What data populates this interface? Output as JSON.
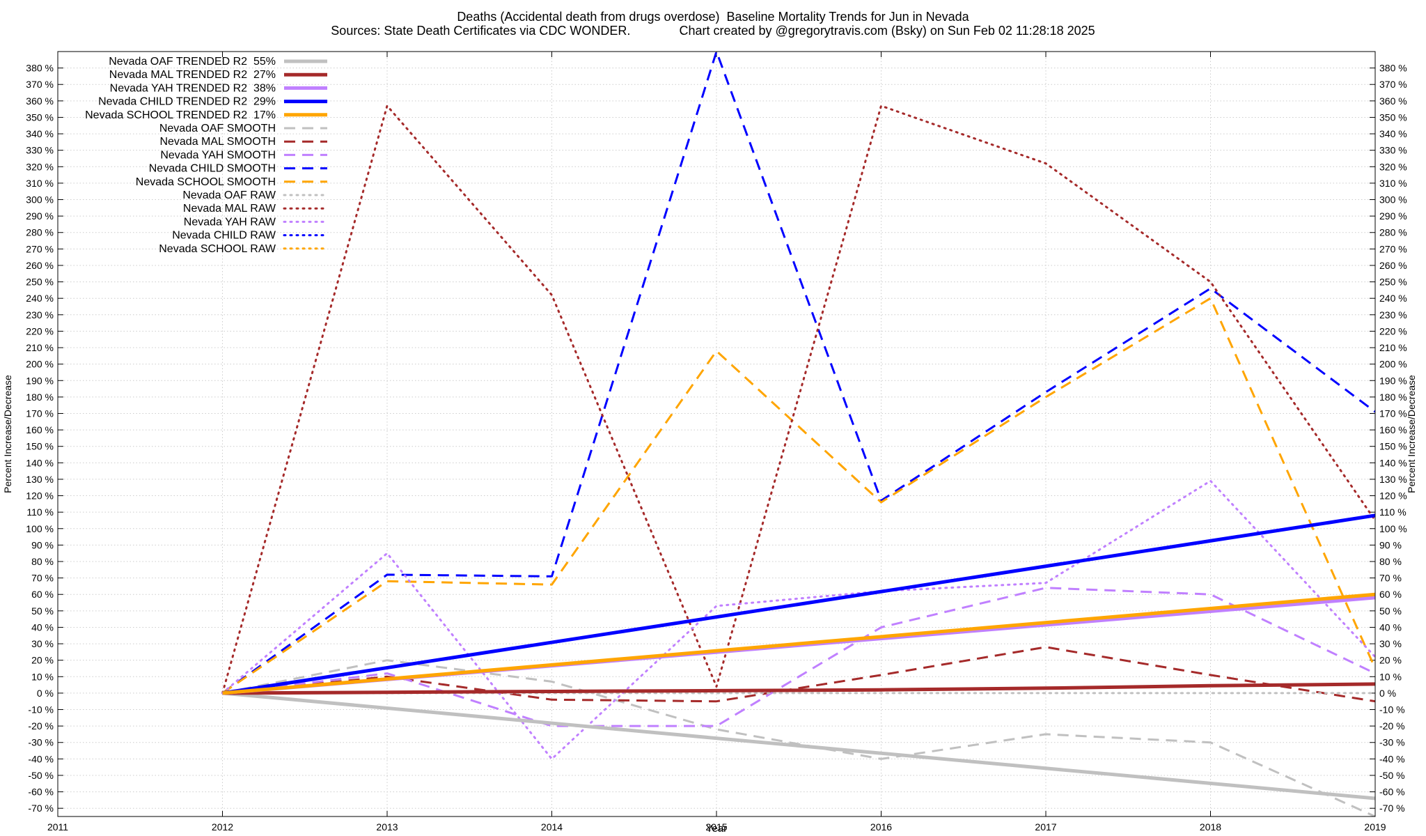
{
  "title_line1": "Deaths (Accidental death from drugs overdose)  Baseline Mortality Trends for Jun in Nevada",
  "title_line2": "Sources: State Death Certificates via CDC WONDER.              Chart created by @gregorytravis.com (Bsky) on Sun Feb 02 11:28:18 2025",
  "chart_data": {
    "type": "line",
    "xlabel": "Year",
    "ylabel": "Percent Increase/Decrease",
    "xlim": [
      2011,
      2019
    ],
    "ylim": [
      -75,
      390
    ],
    "x_ticks": [
      2011,
      2012,
      2013,
      2014,
      2015,
      2016,
      2017,
      2018,
      2019
    ],
    "y_ticks": [
      -70,
      -60,
      -50,
      -40,
      -30,
      -20,
      -10,
      0,
      10,
      20,
      30,
      40,
      50,
      60,
      70,
      80,
      90,
      100,
      110,
      120,
      130,
      140,
      150,
      160,
      170,
      180,
      190,
      200,
      210,
      220,
      230,
      240,
      250,
      260,
      270,
      280,
      290,
      300,
      310,
      320,
      330,
      340,
      350,
      360,
      370,
      380
    ],
    "y_tick_suffix": " %",
    "grid": true,
    "legend_position": "top-left",
    "series": [
      {
        "name": "Nevada OAF TRENDED R2  55%",
        "color": "#c0c0c0",
        "style": "solid",
        "width": 5,
        "x": [
          2012,
          2019
        ],
        "y": [
          0,
          -64
        ]
      },
      {
        "name": "Nevada MAL TRENDED R2  27%",
        "color": "#a52a2a",
        "style": "solid",
        "width": 5,
        "x": [
          2012,
          2013,
          2014,
          2015,
          2016,
          2017,
          2018,
          2019
        ],
        "y": [
          0,
          0.5,
          1,
          1.5,
          2,
          3,
          4.5,
          5.5
        ]
      },
      {
        "name": "Nevada YAH TRENDED R2  38%",
        "color": "#c080ff",
        "style": "solid",
        "width": 5,
        "x": [
          2012,
          2019
        ],
        "y": [
          0,
          58
        ]
      },
      {
        "name": "Nevada CHILD TRENDED R2  29%",
        "color": "#0000ff",
        "style": "solid",
        "width": 5,
        "x": [
          2012,
          2019
        ],
        "y": [
          0,
          108
        ]
      },
      {
        "name": "Nevada SCHOOL TRENDED R2  17%",
        "color": "#ffa500",
        "style": "solid",
        "width": 5,
        "x": [
          2012,
          2019
        ],
        "y": [
          0,
          60
        ]
      },
      {
        "name": "Nevada OAF SMOOTH",
        "color": "#c0c0c0",
        "style": "dashed",
        "width": 3,
        "x": [
          2012,
          2013,
          2014,
          2015,
          2016,
          2017,
          2018,
          2019
        ],
        "y": [
          0,
          20,
          7,
          -22,
          -40,
          -25,
          -30,
          -75
        ]
      },
      {
        "name": "Nevada MAL SMOOTH",
        "color": "#a52a2a",
        "style": "dashed",
        "width": 3,
        "x": [
          2012,
          2013,
          2014,
          2015,
          2016,
          2017,
          2018,
          2019
        ],
        "y": [
          0,
          10,
          -4,
          -5,
          11,
          28,
          11,
          -5
        ]
      },
      {
        "name": "Nevada YAH SMOOTH",
        "color": "#c080ff",
        "style": "dashed",
        "width": 3,
        "x": [
          2012,
          2013,
          2014,
          2015,
          2016,
          2017,
          2018,
          2019
        ],
        "y": [
          0,
          12,
          -20,
          -20,
          40,
          64,
          60,
          12
        ]
      },
      {
        "name": "Nevada CHILD SMOOTH",
        "color": "#0000ff",
        "style": "dashed",
        "width": 3,
        "x": [
          2012,
          2013,
          2014,
          2015,
          2016,
          2017,
          2018,
          2019
        ],
        "y": [
          0,
          72,
          71,
          390,
          117,
          183,
          246,
          171
        ]
      },
      {
        "name": "Nevada SCHOOL SMOOTH",
        "color": "#ffa500",
        "style": "dashed",
        "width": 3,
        "x": [
          2012,
          2013,
          2014,
          2015,
          2016,
          2017,
          2018,
          2019
        ],
        "y": [
          0,
          68,
          66,
          208,
          116,
          180,
          240,
          15
        ]
      },
      {
        "name": "Nevada OAF RAW",
        "color": "#c0c0c0",
        "style": "dotted",
        "width": 3,
        "x": [
          2012,
          2013,
          2014,
          2015,
          2016,
          2017,
          2018,
          2019
        ],
        "y": [
          0,
          0,
          0,
          0,
          0,
          0,
          0,
          0
        ]
      },
      {
        "name": "Nevada MAL RAW",
        "color": "#a52a2a",
        "style": "dotted",
        "width": 3,
        "x": [
          2012,
          2013,
          2014,
          2015,
          2016,
          2017,
          2018,
          2019
        ],
        "y": [
          0,
          357,
          242,
          4,
          357,
          322,
          250,
          105
        ]
      },
      {
        "name": "Nevada YAH RAW",
        "color": "#c080ff",
        "style": "dotted",
        "width": 3,
        "x": [
          2012,
          2013,
          2014,
          2015,
          2016,
          2017,
          2018,
          2019
        ],
        "y": [
          0,
          85,
          -40,
          53,
          62,
          67,
          129,
          22
        ]
      },
      {
        "name": "Nevada CHILD RAW",
        "color": "#0000ff",
        "style": "dotted",
        "width": 3,
        "x": [],
        "y": []
      },
      {
        "name": "Nevada SCHOOL RAW",
        "color": "#ffa500",
        "style": "dotted",
        "width": 3,
        "x": [],
        "y": []
      }
    ]
  }
}
